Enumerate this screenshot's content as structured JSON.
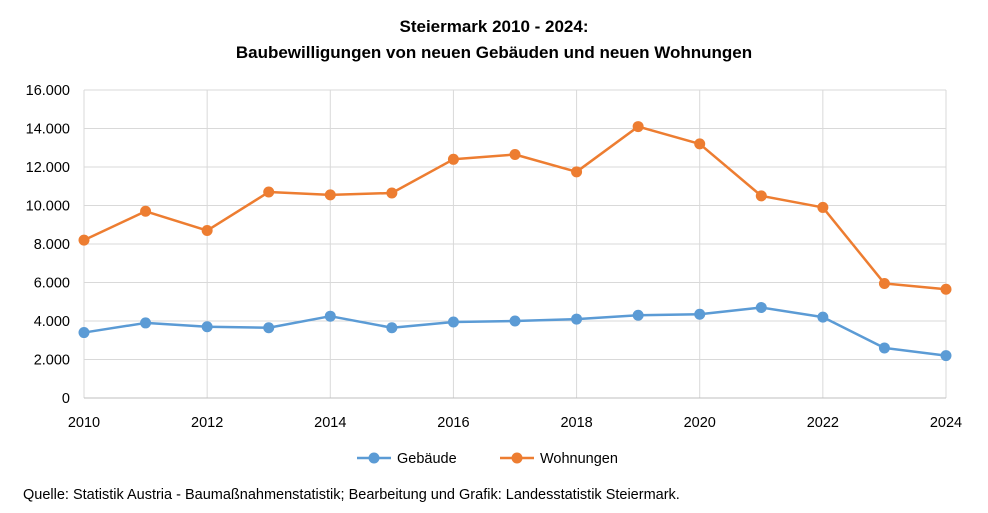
{
  "chart_data": {
    "type": "line",
    "title": [
      "Steiermark 2010 - 2024:",
      "Baubewilligungen von neuen Gebäuden und neuen Wohnungen"
    ],
    "x": [
      2010,
      2011,
      2012,
      2013,
      2014,
      2015,
      2016,
      2017,
      2018,
      2019,
      2020,
      2021,
      2022,
      2023,
      2024
    ],
    "x_tick_labels": [
      "2010",
      "2012",
      "2014",
      "2016",
      "2018",
      "2020",
      "2022",
      "2024"
    ],
    "x_tick_values": [
      2010,
      2012,
      2014,
      2016,
      2018,
      2020,
      2022,
      2024
    ],
    "xlim": [
      2010,
      2024
    ],
    "ylim": [
      0,
      16000
    ],
    "y_tick_values": [
      0,
      2000,
      4000,
      6000,
      8000,
      10000,
      12000,
      14000,
      16000
    ],
    "y_tick_labels": [
      "0",
      "2.000",
      "4.000",
      "6.000",
      "8.000",
      "10.000",
      "12.000",
      "14.000",
      "16.000"
    ],
    "grid": true,
    "legend_position": "bottom",
    "series": [
      {
        "name": "Gebäude",
        "color": "#5B9BD5",
        "values": [
          3400,
          3900,
          3700,
          3650,
          4250,
          3650,
          3950,
          4000,
          4100,
          4300,
          4350,
          4700,
          4200,
          2600,
          2200
        ]
      },
      {
        "name": "Wohnungen",
        "color": "#ED7D31",
        "values": [
          8200,
          9700,
          8700,
          10700,
          10550,
          10650,
          12400,
          12650,
          11750,
          14100,
          13200,
          10500,
          9900,
          5950,
          5650
        ]
      }
    ]
  },
  "source_text": "Quelle: Statistik Austria - Baumaßnahmenstatistik;  Bearbeitung und Grafik: Landesstatistik Steiermark."
}
